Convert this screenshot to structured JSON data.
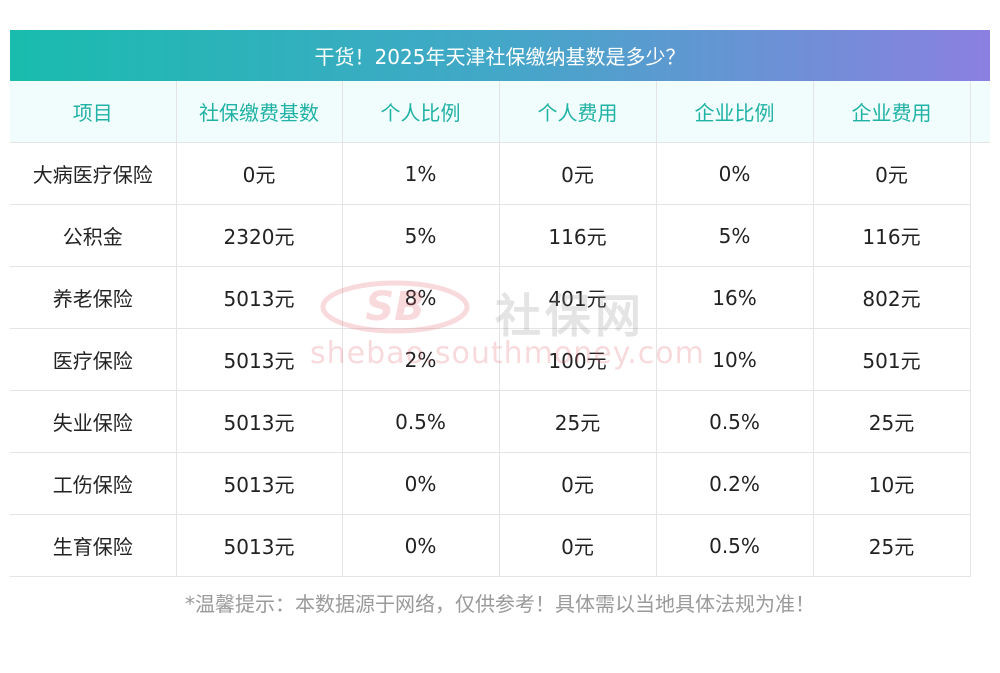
{
  "banner": {
    "title": "干货！2025年天津社保缴纳基数是多少？"
  },
  "table": {
    "headers": [
      "项目",
      "社保缴费基数",
      "个人比例",
      "个人费用",
      "企业比例",
      "企业费用"
    ],
    "rows": [
      [
        "大病医疗保险",
        "0元",
        "1%",
        "0元",
        "0%",
        "0元"
      ],
      [
        "公积金",
        "2320元",
        "5%",
        "116元",
        "5%",
        "116元"
      ],
      [
        "养老保险",
        "5013元",
        "8%",
        "401元",
        "16%",
        "802元"
      ],
      [
        "医疗保险",
        "5013元",
        "2%",
        "100元",
        "10%",
        "501元"
      ],
      [
        "失业保险",
        "5013元",
        "0.5%",
        "25元",
        "0.5%",
        "25元"
      ],
      [
        "工伤保险",
        "5013元",
        "0%",
        "0元",
        "0.2%",
        "10元"
      ],
      [
        "生育保险",
        "5013元",
        "0%",
        "0元",
        "0.5%",
        "25元"
      ]
    ]
  },
  "note": "*温馨提示：本数据源于网络，仅供参考！具体需以当地具体法规为准！",
  "watermark": {
    "logo_text": "SB",
    "cn_text": "社保网",
    "url_text": "shebao.southmoney.com"
  },
  "colors": {
    "banner_start": "#19bcae",
    "banner_end": "#8b80e0",
    "header_bg": "#f0fdfc",
    "header_text": "#21b2a6",
    "note_text": "#9a9a9a"
  }
}
